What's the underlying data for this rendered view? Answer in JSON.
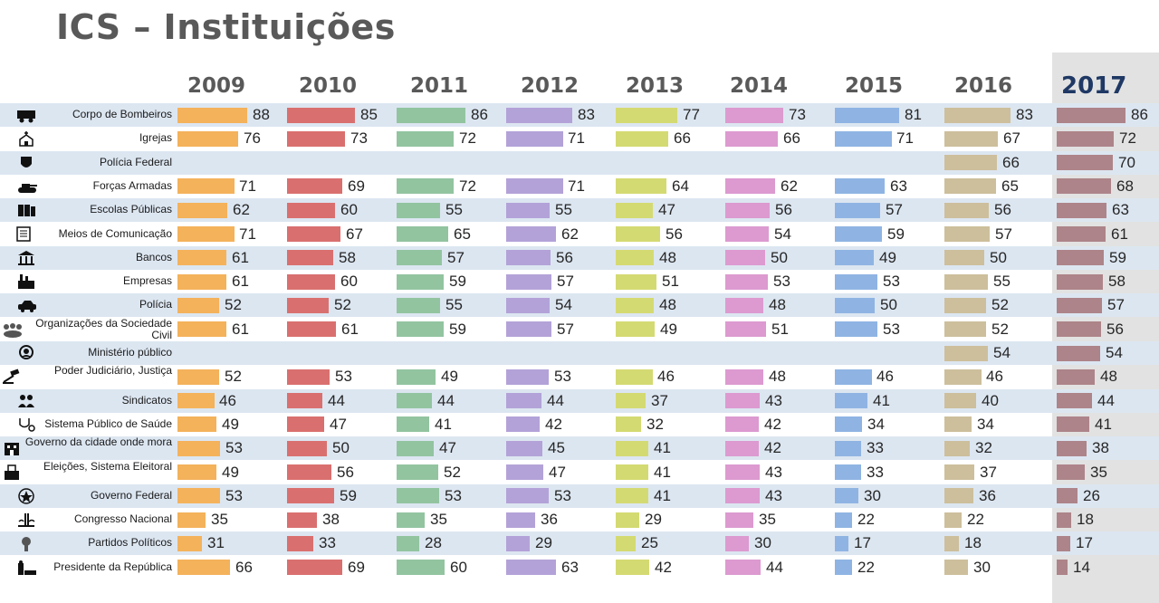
{
  "title": "ICS – Instituições",
  "chart_data": {
    "type": "bar",
    "years": [
      "2009",
      "2010",
      "2011",
      "2012",
      "2013",
      "2014",
      "2015",
      "2016",
      "2017"
    ],
    "colors": [
      "#f4b25b",
      "#d9706f",
      "#92c4a0",
      "#b3a2d8",
      "#d4da72",
      "#dc9ad0",
      "#8fb4e3",
      "#cdbf9c",
      "#ad8489"
    ],
    "rows": [
      {
        "label": "Corpo de Bombeiros",
        "icon": "fire-truck-icon",
        "values": [
          88,
          85,
          86,
          83,
          77,
          73,
          81,
          83,
          86
        ]
      },
      {
        "label": "Igrejas",
        "icon": "church-icon",
        "values": [
          76,
          73,
          72,
          71,
          66,
          66,
          71,
          67,
          72
        ]
      },
      {
        "label": "Polícia Federal",
        "icon": "police-badge-icon",
        "values": [
          null,
          null,
          null,
          null,
          null,
          null,
          null,
          66,
          70
        ]
      },
      {
        "label": "Forças Armadas",
        "icon": "tank-icon",
        "values": [
          71,
          69,
          72,
          71,
          64,
          62,
          63,
          65,
          68
        ]
      },
      {
        "label": "Escolas Públicas",
        "icon": "books-icon",
        "values": [
          62,
          60,
          55,
          55,
          47,
          56,
          57,
          56,
          63
        ]
      },
      {
        "label": "Meios de Comunicação",
        "icon": "newspaper-icon",
        "values": [
          71,
          67,
          65,
          62,
          56,
          54,
          59,
          57,
          61
        ]
      },
      {
        "label": "Bancos",
        "icon": "bank-icon",
        "values": [
          61,
          58,
          57,
          56,
          48,
          50,
          49,
          50,
          59
        ]
      },
      {
        "label": "Empresas",
        "icon": "factory-icon",
        "values": [
          61,
          60,
          59,
          57,
          51,
          53,
          53,
          55,
          58
        ]
      },
      {
        "label": "Polícia",
        "icon": "police-car-icon",
        "values": [
          52,
          52,
          55,
          54,
          48,
          48,
          50,
          52,
          57
        ]
      },
      {
        "label": "Organizações da Sociedade Civil",
        "icon": "crowd-icon",
        "values": [
          61,
          61,
          59,
          57,
          49,
          51,
          53,
          52,
          56
        ]
      },
      {
        "label": "Ministério público",
        "icon": "prosecutor-icon",
        "values": [
          null,
          null,
          null,
          null,
          null,
          null,
          null,
          54,
          54
        ]
      },
      {
        "label": "Poder Judiciário, Justiça",
        "icon": "gavel-icon",
        "values": [
          52,
          53,
          49,
          53,
          46,
          48,
          46,
          46,
          48
        ]
      },
      {
        "label": "Sindicatos",
        "icon": "union-icon",
        "values": [
          46,
          44,
          44,
          44,
          37,
          43,
          41,
          40,
          44
        ]
      },
      {
        "label": "Sistema Público de Saúde",
        "icon": "stethoscope-icon",
        "values": [
          49,
          47,
          41,
          42,
          32,
          42,
          34,
          34,
          41
        ]
      },
      {
        "label": "Governo da cidade onde mora",
        "icon": "city-hall-icon",
        "values": [
          53,
          50,
          47,
          45,
          41,
          42,
          33,
          32,
          38
        ]
      },
      {
        "label": "Eleições, Sistema Eleitoral",
        "icon": "ballot-box-icon",
        "values": [
          49,
          56,
          52,
          47,
          41,
          43,
          33,
          37,
          35
        ]
      },
      {
        "label": "Governo Federal",
        "icon": "coat-of-arms-icon",
        "values": [
          53,
          59,
          53,
          53,
          41,
          43,
          30,
          36,
          26
        ]
      },
      {
        "label": "Congresso Nacional",
        "icon": "congress-icon",
        "values": [
          35,
          38,
          35,
          36,
          29,
          35,
          22,
          22,
          18
        ]
      },
      {
        "label": "Partidos Políticos",
        "icon": "party-icon",
        "values": [
          31,
          33,
          28,
          29,
          25,
          30,
          17,
          18,
          17
        ]
      },
      {
        "label": "Presidente da República",
        "icon": "president-icon",
        "values": [
          66,
          69,
          60,
          63,
          42,
          44,
          22,
          30,
          14
        ]
      }
    ]
  }
}
